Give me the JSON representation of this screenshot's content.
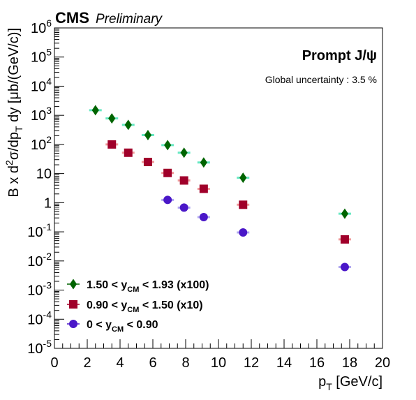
{
  "header": {
    "experiment": "CMS",
    "status": "Preliminary"
  },
  "annotations": {
    "title": "Prompt J/ψ",
    "global_uncertainty": "Global uncertainty : 3.5 %"
  },
  "colors": {
    "series_1": "#006400",
    "series_2": "#a0002a",
    "series_3": "#4a17c8",
    "syst_1": "#66e8c2",
    "syst_2": "#f09a9a",
    "syst_3": "#b0a8f0"
  },
  "chart_data": {
    "type": "scatter",
    "xlabel": "p_T [GeV/c]",
    "ylabel": "B x d²σ/dp_T dy [μb/(GeV/c)]",
    "xlim": [
      0,
      20
    ],
    "ylim": [
      1e-05,
      1000000.0
    ],
    "yscale": "log",
    "x_ticks": [
      0,
      2,
      4,
      6,
      8,
      10,
      12,
      14,
      16,
      18,
      20
    ],
    "y_ticks": [
      "10^-5",
      "10^-4",
      "10^-3",
      "10^-2",
      "10^-1",
      "1",
      "10",
      "10^2",
      "10^3",
      "10^4",
      "10^5",
      "10^6"
    ],
    "legend_position": "bottom-left",
    "series": [
      {
        "name": "1.50 < y_CM < 1.93 (x100)",
        "marker": "diamond",
        "x": [
          2.5,
          3.5,
          4.5,
          5.7,
          6.9,
          7.9,
          9.1,
          11.5,
          17.7
        ],
        "y": [
          1500,
          780,
          470,
          210,
          95,
          52,
          24,
          7.2,
          0.42
        ]
      },
      {
        "name": "0.90 < y_CM < 1.50 (x10)",
        "marker": "square",
        "x": [
          3.5,
          4.5,
          5.7,
          6.9,
          7.9,
          9.1,
          11.5,
          17.7
        ],
        "y": [
          100,
          52,
          25,
          10.5,
          5.8,
          3.0,
          0.85,
          0.055
        ]
      },
      {
        "name": "0 < y_CM < 0.90",
        "marker": "circle",
        "x": [
          6.9,
          7.9,
          9.1,
          11.5,
          17.7
        ],
        "y": [
          1.25,
          0.68,
          0.32,
          0.095,
          0.0062
        ]
      }
    ]
  }
}
